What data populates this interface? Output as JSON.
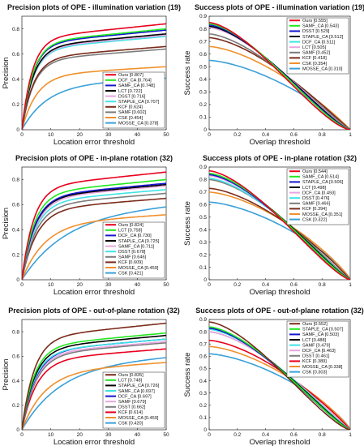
{
  "colors": {
    "red": "#e8001c",
    "green": "#22e81e",
    "blue": "#1515cf",
    "black": "#000000",
    "cyan": "#3fe3e6",
    "pink": "#e8a5df",
    "gray": "#7b7b7b",
    "maroon": "#7b2b1b",
    "orange": "#f0902c",
    "sky": "#3aa0d8"
  },
  "chart_data": [
    {
      "type": "line",
      "title": "Precision plots of OPE - illumination variation (19)",
      "xlabel": "Location error threshold",
      "ylabel": "Precision",
      "xlim": [
        0,
        50
      ],
      "ylim": [
        0,
        0.9
      ],
      "xticks": [
        "0",
        "10",
        "20",
        "30",
        "40",
        "50"
      ],
      "yticks": [
        "0",
        "0.2",
        "0.4",
        "0.6",
        "0.8"
      ],
      "legend_position": "bottom-right",
      "series": [
        {
          "name": "Ours [0.807]",
          "color": "red",
          "end": 0.84,
          "k": 0.28
        },
        {
          "name": "DCF_CA [0.764]",
          "color": "green",
          "end": 0.8,
          "k": 0.27
        },
        {
          "name": "SAMF_CA [0.748]",
          "color": "blue",
          "end": 0.79,
          "k": 0.27
        },
        {
          "name": "LCT [0.722]",
          "color": "black",
          "end": 0.76,
          "k": 0.26
        },
        {
          "name": "DSST [0.716]",
          "color": "pink",
          "end": 0.75,
          "k": 0.26
        },
        {
          "name": "STAPLE_CA [0.707]",
          "color": "cyan",
          "end": 0.74,
          "k": 0.26
        },
        {
          "name": "KCF [0.624]",
          "color": "maroon",
          "end": 0.66,
          "k": 0.25
        },
        {
          "name": "SAMF [0.602]",
          "color": "gray",
          "end": 0.64,
          "k": 0.25
        },
        {
          "name": "CSK [0.454]",
          "color": "orange",
          "end": 0.5,
          "k": 0.2
        },
        {
          "name": "MOSSE_CA [0.378]",
          "color": "sky",
          "end": 0.41,
          "k": 0.12
        }
      ]
    },
    {
      "type": "line",
      "title": "Success plots of OPE - illumination variation (19)",
      "xlabel": "Overlap threshold",
      "ylabel": "Success rate",
      "xlim": [
        0,
        1
      ],
      "ylim": [
        0,
        0.9
      ],
      "xticks": [
        "0",
        "0.2",
        "0.4",
        "0.6",
        "0.8",
        "1"
      ],
      "yticks": [
        "0",
        "0.1",
        "0.2",
        "0.3",
        "0.4",
        "0.5",
        "0.6",
        "0.7",
        "0.8",
        "0.9"
      ],
      "legend_position": "top-right",
      "series": [
        {
          "name": "Ours [0.555]",
          "color": "red",
          "start": 0.85,
          "shape": 1.5
        },
        {
          "name": "SAMF_CA [0.543]",
          "color": "green",
          "start": 0.84,
          "shape": 1.4
        },
        {
          "name": "DSST [0.529]",
          "color": "blue",
          "start": 0.83,
          "shape": 1.35
        },
        {
          "name": "STAPLE_CA [0.512]",
          "color": "black",
          "start": 0.82,
          "shape": 1.3
        },
        {
          "name": "DCF_CA [0.511]",
          "color": "cyan",
          "start": 0.82,
          "shape": 1.3
        },
        {
          "name": "LCT [0.505]",
          "color": "pink",
          "start": 0.81,
          "shape": 1.25
        },
        {
          "name": "SAMF [0.452]",
          "color": "gray",
          "start": 0.76,
          "shape": 1.15
        },
        {
          "name": "KCF [0.418]",
          "color": "maroon",
          "start": 0.73,
          "shape": 1.05
        },
        {
          "name": "CSK [0.354]",
          "color": "orange",
          "start": 0.66,
          "shape": 0.95
        },
        {
          "name": "MOSSE_CA [0.310]",
          "color": "sky",
          "start": 0.55,
          "shape": 0.9
        }
      ]
    },
    {
      "type": "line",
      "title": "Precision plots of OPE - in-plane rotation (32)",
      "xlabel": "Location error threshold",
      "ylabel": "Precision",
      "xlim": [
        0,
        50
      ],
      "ylim": [
        0,
        0.9
      ],
      "xticks": [
        "0",
        "10",
        "20",
        "30",
        "40",
        "50"
      ],
      "yticks": [
        "0",
        "0.2",
        "0.4",
        "0.6",
        "0.8"
      ],
      "legend_position": "bottom-right",
      "series": [
        {
          "name": "Ours [0.824]",
          "color": "red",
          "end": 0.86,
          "k": 0.25
        },
        {
          "name": "LCT [0.758]",
          "color": "green",
          "end": 0.8,
          "k": 0.24
        },
        {
          "name": "DCF_CA [0.730]",
          "color": "blue",
          "end": 0.77,
          "k": 0.23
        },
        {
          "name": "STAPLE_CA [0.725]",
          "color": "black",
          "end": 0.76,
          "k": 0.23
        },
        {
          "name": "SAMF_CA [0.711]",
          "color": "pink",
          "end": 0.75,
          "k": 0.22
        },
        {
          "name": "DSST [0.678]",
          "color": "cyan",
          "end": 0.72,
          "k": 0.22
        },
        {
          "name": "SAMF [0.646]",
          "color": "gray",
          "end": 0.69,
          "k": 0.21
        },
        {
          "name": "KCF [0.609]",
          "color": "maroon",
          "end": 0.65,
          "k": 0.2
        },
        {
          "name": "MOSSE_CA [0.459]",
          "color": "orange",
          "end": 0.52,
          "k": 0.13
        },
        {
          "name": "CSK [0.421]",
          "color": "sky",
          "end": 0.6,
          "k": 0.07
        }
      ]
    },
    {
      "type": "line",
      "title": "Success plots of OPE - in-plane rotation (32)",
      "xlabel": "Overlap threshold",
      "ylabel": "Success rate",
      "xlim": [
        0,
        1
      ],
      "ylim": [
        0,
        0.9
      ],
      "xticks": [
        "0",
        "0.2",
        "0.4",
        "0.6",
        "0.8",
        "1"
      ],
      "yticks": [
        "0",
        "0.1",
        "0.2",
        "0.3",
        "0.4",
        "0.5",
        "0.6",
        "0.7",
        "0.8",
        "0.9"
      ],
      "legend_position": "top-right",
      "series": [
        {
          "name": "Ours [0.544]",
          "color": "red",
          "start": 0.87,
          "shape": 1.35
        },
        {
          "name": "SAMF_CA [0.514]",
          "color": "green",
          "start": 0.85,
          "shape": 1.25
        },
        {
          "name": "STAPLE_CA [0.506]",
          "color": "blue",
          "start": 0.84,
          "shape": 1.25
        },
        {
          "name": "LCT [0.498]",
          "color": "black",
          "start": 0.84,
          "shape": 1.2
        },
        {
          "name": "DCF_CA [0.493]",
          "color": "pink",
          "start": 0.83,
          "shape": 1.2
        },
        {
          "name": "DSST [0.476]",
          "color": "cyan",
          "start": 0.81,
          "shape": 1.15
        },
        {
          "name": "SAMF [0.466]",
          "color": "gray",
          "start": 0.8,
          "shape": 1.1
        },
        {
          "name": "KCF [0.394]",
          "color": "maroon",
          "start": 0.73,
          "shape": 0.95
        },
        {
          "name": "MOSSE_CA [0.351]",
          "color": "orange",
          "start": 0.7,
          "shape": 0.85
        },
        {
          "name": "CSK [0.322]",
          "color": "sky",
          "start": 0.62,
          "shape": 0.8
        }
      ]
    },
    {
      "type": "line",
      "title": "Precision plots of OPE - out-of-plane rotation (32)",
      "xlabel": "Location error threshold",
      "ylabel": "Precision",
      "xlim": [
        0,
        50
      ],
      "ylim": [
        0,
        0.9
      ],
      "xticks": [
        "0",
        "10",
        "20",
        "30",
        "40",
        "50"
      ],
      "yticks": [
        "0",
        "0.2",
        "0.4",
        "0.6",
        "0.8"
      ],
      "legend_position": "bottom-right",
      "series": [
        {
          "name": "Ours [0.835]",
          "color": "maroon",
          "end": 0.87,
          "k": 0.24
        },
        {
          "name": "LCT [0.748]",
          "color": "green",
          "end": 0.79,
          "k": 0.24
        },
        {
          "name": "STAPLE_CA [0.726]",
          "color": "black",
          "end": 0.77,
          "k": 0.23
        },
        {
          "name": "SAMF_CA [0.697]",
          "color": "cyan",
          "end": 0.74,
          "k": 0.23
        },
        {
          "name": "DCF_CA [0.697]",
          "color": "blue",
          "end": 0.74,
          "k": 0.22
        },
        {
          "name": "SAMF [0.679]",
          "color": "pink",
          "end": 0.72,
          "k": 0.22
        },
        {
          "name": "DSST [0.662]",
          "color": "gray",
          "end": 0.71,
          "k": 0.21
        },
        {
          "name": "KCF [0.614]",
          "color": "red",
          "end": 0.66,
          "k": 0.2
        },
        {
          "name": "MOSSE_CA [0.459]",
          "color": "orange",
          "end": 0.55,
          "k": 0.13
        },
        {
          "name": "CSK [0.420]",
          "color": "sky",
          "end": 0.6,
          "k": 0.08
        }
      ]
    },
    {
      "type": "line",
      "title": "Success plots of OPE - out-of-plane rotation (32)",
      "xlabel": "Overlap threshold",
      "ylabel": "Success rate",
      "xlim": [
        0,
        1
      ],
      "ylim": [
        0,
        0.9
      ],
      "xticks": [
        "0",
        "0.2",
        "0.4",
        "0.6",
        "0.8",
        "1"
      ],
      "yticks": [
        "0",
        "0.1",
        "0.2",
        "0.3",
        "0.4",
        "0.5",
        "0.6",
        "0.7",
        "0.8",
        "0.9"
      ],
      "legend_position": "top-right",
      "series": [
        {
          "name": "Ours [0.552]",
          "color": "maroon",
          "start": 0.88,
          "shape": 1.4
        },
        {
          "name": "STAPLE_CA [0.507]",
          "color": "green",
          "start": 0.84,
          "shape": 1.25
        },
        {
          "name": "SAMF_CA [0.503]",
          "color": "blue",
          "start": 0.83,
          "shape": 1.25
        },
        {
          "name": "LCT [0.488]",
          "color": "black",
          "start": 0.83,
          "shape": 1.2
        },
        {
          "name": "SAMF [0.479]",
          "color": "cyan",
          "start": 0.82,
          "shape": 1.15
        },
        {
          "name": "DCF_CA [0.463]",
          "color": "pink",
          "start": 0.8,
          "shape": 1.1
        },
        {
          "name": "DSST [0.461]",
          "color": "gray",
          "start": 0.8,
          "shape": 1.1
        },
        {
          "name": "KCF [0.389]",
          "color": "red",
          "start": 0.73,
          "shape": 0.95
        },
        {
          "name": "MOSSE_CA [0.338]",
          "color": "orange",
          "start": 0.68,
          "shape": 0.85
        },
        {
          "name": "CSK [0.303]",
          "color": "sky",
          "start": 0.62,
          "shape": 0.8
        }
      ]
    }
  ]
}
